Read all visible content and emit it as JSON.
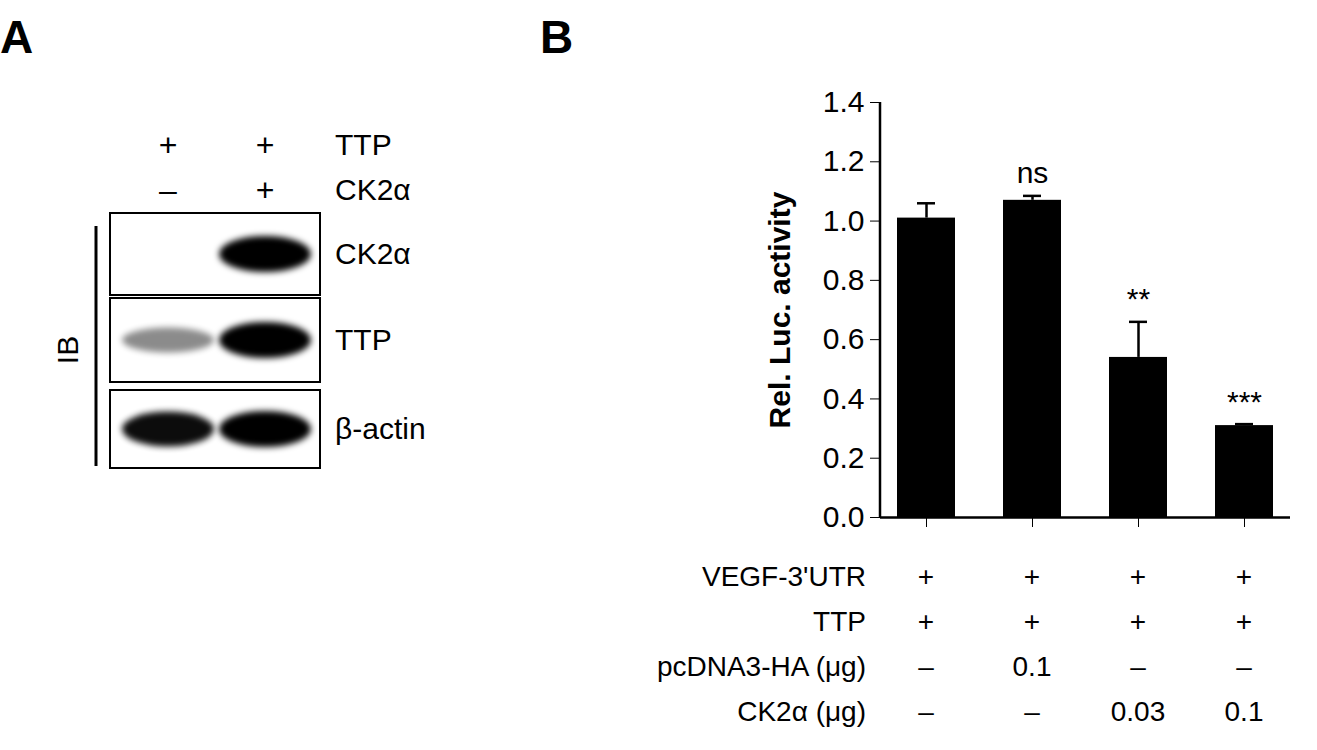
{
  "chart_data": {
    "type": "bar",
    "panel_label": "B",
    "categories": [
      null,
      null,
      null,
      null
    ],
    "values": [
      1.01,
      1.07,
      0.54,
      0.31
    ],
    "errors": [
      0.05,
      0.015,
      0.12,
      0.005
    ],
    "annotations": [
      null,
      "ns",
      "**",
      "***"
    ],
    "ylabel": "Rel. Luc. activity",
    "ylim": [
      0,
      1.4
    ],
    "yticks": [
      {
        "value": 0,
        "label": "0.0"
      },
      0.2,
      0.4,
      0.6,
      0.8,
      {
        "value": 1,
        "label": "1.0"
      },
      1.2,
      1.4
    ],
    "color": "#000000",
    "conditions": [
      {
        "name": "VEGF-3'UTR",
        "values": [
          "+",
          "+",
          "+",
          "+"
        ]
      },
      {
        "name": "TTP",
        "values": [
          "+",
          "+",
          "+",
          "+"
        ]
      },
      {
        "name": "pcDNA3-HA (μg)",
        "values": [
          "–",
          "0.1",
          "–",
          "–"
        ]
      },
      {
        "name": "CK2α (μg)",
        "values": [
          "–",
          "–",
          "0.03",
          "0.1"
        ]
      }
    ]
  },
  "blot": {
    "panel_label": "A",
    "conditions": [
      {
        "name": "TTP",
        "values": [
          "+",
          "+"
        ]
      },
      {
        "name": "CK2α",
        "values": [
          "–",
          "+"
        ]
      }
    ],
    "side_label": "IB",
    "bands": [
      {
        "name": "CK2α",
        "signal": [
          0,
          1
        ]
      },
      {
        "name": "TTP",
        "signal": [
          0.45,
          1
        ]
      },
      {
        "name": "β-actin",
        "signal": [
          0.95,
          1
        ]
      }
    ]
  }
}
